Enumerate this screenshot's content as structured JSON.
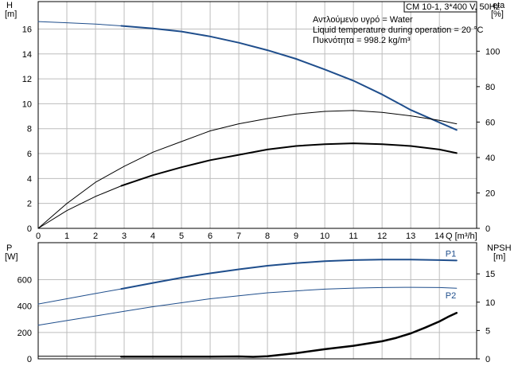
{
  "chart_data": [
    {
      "type": "line",
      "name": "top",
      "title_box": [
        "CM 10-1, 3*400 V, 50Hz"
      ],
      "info_lines": [
        "Αντλούμενο υγρό = Water",
        "Liquid temperature during operation = 20 °C",
        "Πυκνότητα = 998.2 kg/m³"
      ],
      "ylabel": "H",
      "yunit": "[m]",
      "y2label": "eta",
      "y2unit": "[%]",
      "xlabel": "Q [m³/h]",
      "xlim": [
        0,
        15.3
      ],
      "ylim": [
        0,
        18.2
      ],
      "y2lim": [
        0,
        128
      ],
      "xticks": [
        0,
        1,
        2,
        3,
        4,
        5,
        6,
        7,
        8,
        9,
        10,
        11,
        12,
        13,
        14
      ],
      "yticks": [
        0,
        2,
        4,
        6,
        8,
        10,
        12,
        14,
        16
      ],
      "y2ticks": [
        0,
        20,
        40,
        60,
        80,
        100
      ],
      "series": [
        {
          "key": "head_thin",
          "axis": "y",
          "color": "#1f4e8c",
          "width": 1,
          "x": [
            0,
            1,
            2,
            2.9
          ],
          "y": [
            16.6,
            16.5,
            16.4,
            16.25
          ]
        },
        {
          "key": "head",
          "axis": "y",
          "color": "#1f4e8c",
          "width": 2,
          "x": [
            2.9,
            4,
            5,
            6,
            7,
            8,
            9,
            10,
            11,
            12,
            13,
            14,
            14.6
          ],
          "y": [
            16.25,
            16.05,
            15.8,
            15.4,
            14.9,
            14.3,
            13.6,
            12.75,
            11.85,
            10.75,
            9.5,
            8.5,
            7.9
          ]
        },
        {
          "key": "eta_total",
          "axis": "y2",
          "color": "#000000",
          "width": 1,
          "x": [
            0,
            1,
            2,
            3,
            4,
            5,
            6,
            7,
            8,
            9,
            10,
            11,
            12,
            13,
            14,
            14.6
          ],
          "y": [
            0,
            14,
            26,
            35,
            43,
            49,
            55,
            59,
            62,
            64.5,
            66,
            66.5,
            65.5,
            63.5,
            61,
            59
          ]
        },
        {
          "key": "eta_pump_thin",
          "axis": "y2",
          "color": "#000000",
          "width": 1,
          "x": [
            0,
            1,
            2,
            2.9
          ],
          "y": [
            0,
            10,
            18,
            24
          ]
        },
        {
          "key": "eta_pump",
          "axis": "y2",
          "color": "#000000",
          "width": 2,
          "x": [
            2.9,
            4,
            5,
            6,
            7,
            8,
            9,
            10,
            11,
            12,
            13,
            14,
            14.6
          ],
          "y": [
            24,
            30,
            34.5,
            38.5,
            41.5,
            44.5,
            46.5,
            47.5,
            48,
            47.5,
            46.5,
            44.5,
            42.5
          ]
        }
      ]
    },
    {
      "type": "line",
      "name": "bottom",
      "ylabel": "P",
      "yunit": "[W]",
      "y2label": "NPSH",
      "y2unit": "[m]",
      "xlim": [
        0,
        15.3
      ],
      "ylim": [
        0,
        880
      ],
      "y2lim": [
        0,
        20.5
      ],
      "yticks": [
        0,
        200,
        400,
        600
      ],
      "y2ticks": [
        0,
        5,
        10,
        15
      ],
      "series": [
        {
          "key": "p1_thin",
          "axis": "y",
          "color": "#1f4e8c",
          "width": 1,
          "x": [
            0,
            1,
            2,
            2.9
          ],
          "y": [
            415,
            455,
            495,
            530
          ]
        },
        {
          "key": "p1",
          "axis": "y",
          "color": "#1f4e8c",
          "width": 2,
          "x": [
            2.9,
            4,
            5,
            6,
            7,
            8,
            9,
            10,
            11,
            12,
            13,
            14,
            14.6
          ],
          "y": [
            530,
            575,
            615,
            648,
            678,
            705,
            725,
            740,
            748,
            752,
            752,
            748,
            745
          ],
          "label": "P1"
        },
        {
          "key": "p2",
          "axis": "y",
          "color": "#1f4e8c",
          "width": 1,
          "x": [
            0,
            1,
            2,
            3,
            4,
            5,
            6,
            7,
            8,
            9,
            10,
            11,
            12,
            13,
            14,
            14.6
          ],
          "y": [
            255,
            290,
            325,
            360,
            395,
            425,
            455,
            478,
            500,
            515,
            528,
            536,
            540,
            542,
            540,
            535
          ],
          "label": "P2"
        },
        {
          "key": "npsh_thin",
          "axis": "y2",
          "color": "#000000",
          "width": 1,
          "x": [
            0,
            2.9
          ],
          "y": [
            0.45,
            0.45
          ]
        },
        {
          "key": "npsh",
          "axis": "y2",
          "color": "#000000",
          "width": 2.5,
          "x": [
            2.9,
            4,
            5,
            6,
            7,
            7.5,
            8,
            9,
            10,
            11,
            12,
            12.5,
            13,
            13.5,
            14,
            14.3,
            14.6
          ],
          "y": [
            0.4,
            0.4,
            0.4,
            0.4,
            0.42,
            0.35,
            0.45,
            1.0,
            1.7,
            2.3,
            3.1,
            3.7,
            4.5,
            5.5,
            6.6,
            7.4,
            8.1
          ]
        }
      ]
    }
  ]
}
